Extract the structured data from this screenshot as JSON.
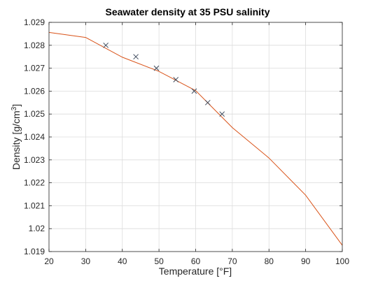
{
  "chart_data": {
    "type": "line",
    "title": "Seawater density at 35 PSU salinity",
    "xlabel": "Temperature [°F]",
    "ylabel_main": "Density [g/cm",
    "ylabel_sup": "3",
    "ylabel_close": "]",
    "xlim": [
      20,
      100
    ],
    "ylim": [
      1.019,
      1.029
    ],
    "xticks": [
      20,
      30,
      40,
      50,
      60,
      70,
      80,
      90,
      100
    ],
    "yticks": [
      1.019,
      1.02,
      1.021,
      1.022,
      1.023,
      1.024,
      1.025,
      1.026,
      1.027,
      1.028,
      1.029
    ],
    "xtick_labels": [
      "20",
      "30",
      "40",
      "50",
      "60",
      "70",
      "80",
      "90",
      "100"
    ],
    "ytick_labels": [
      "1.019",
      "1.02",
      "1.021",
      "1.022",
      "1.023",
      "1.024",
      "1.025",
      "1.026",
      "1.027",
      "1.028",
      "1.029"
    ],
    "grid": true,
    "series": [
      {
        "kind": "line",
        "color": "#d95319",
        "x": [
          20,
          30,
          40,
          50,
          60,
          70,
          80,
          90,
          100
        ],
        "y": [
          1.02856,
          1.02834,
          1.02748,
          1.02686,
          1.02602,
          1.02441,
          1.02308,
          1.02146,
          1.01927
        ]
      },
      {
        "kind": "markers",
        "marker": "x",
        "color": "#3d4a5c",
        "x": [
          35.5,
          43.7,
          49.3,
          54.6,
          59.6,
          63.3,
          67.2
        ],
        "y": [
          1.028,
          1.0275,
          1.027,
          1.0265,
          1.026,
          1.0255,
          1.025
        ]
      }
    ]
  }
}
